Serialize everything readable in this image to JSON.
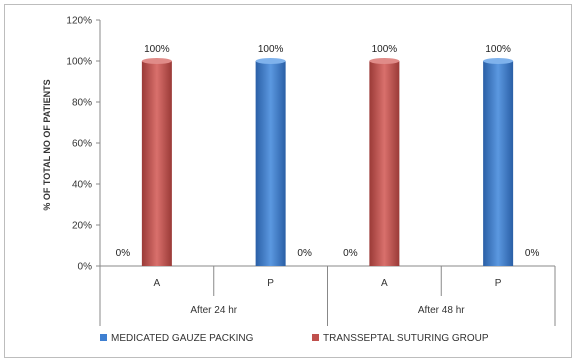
{
  "chart_data": {
    "type": "bar",
    "title": "",
    "ylabel": "% OF TOTAL NO OF PATIENTS",
    "xlabel": "",
    "ylim": [
      0,
      1.2
    ],
    "yticks": [
      "0%",
      "20%",
      "40%",
      "60%",
      "80%",
      "100%",
      "120%"
    ],
    "groups": [
      {
        "label": "After 24 hr",
        "categories": [
          "A",
          "P"
        ]
      },
      {
        "label": "After 48 hr",
        "categories": [
          "A",
          "P"
        ]
      }
    ],
    "series": [
      {
        "name": "MEDICATED GAUZE PACKING",
        "color": "#3e7fd1",
        "values": [
          0,
          1,
          0,
          1
        ],
        "labels": [
          "0%",
          "100%",
          "0%",
          "100%"
        ]
      },
      {
        "name": "TRANSSEPTAL SUTURING GROUP",
        "color": "#c0504d",
        "values": [
          1,
          0,
          1,
          0
        ],
        "labels": [
          "100%",
          "0%",
          "100%",
          "0%"
        ]
      }
    ],
    "grid": false,
    "legend": "bottom"
  }
}
